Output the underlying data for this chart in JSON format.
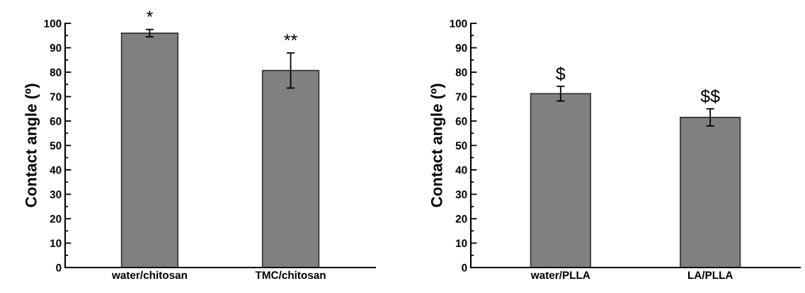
{
  "chart_data": [
    {
      "type": "bar",
      "categories": [
        "water/chitosan",
        "TMC/chitosan"
      ],
      "values": [
        96,
        80.7
      ],
      "errors": [
        1.5,
        7.2
      ],
      "color": "#808080",
      "ylabel": "Contact angle (º)",
      "ylim": [
        0,
        100
      ],
      "yticks": [
        0,
        10,
        20,
        30,
        40,
        50,
        60,
        70,
        80,
        90,
        100
      ],
      "grid": false,
      "legend": false,
      "annotations": [
        "*",
        "**"
      ]
    },
    {
      "type": "bar",
      "categories": [
        "water/PLLA",
        "LA/PLLA"
      ],
      "values": [
        71.2,
        61.5
      ],
      "errors": [
        3,
        3.5
      ],
      "color": "#808080",
      "ylabel": "Contact angle (º)",
      "ylim": [
        0,
        100
      ],
      "yticks": [
        0,
        10,
        20,
        30,
        40,
        50,
        60,
        70,
        80,
        90,
        100
      ],
      "grid": false,
      "legend": false,
      "annotations": [
        "$",
        "$$"
      ]
    }
  ]
}
